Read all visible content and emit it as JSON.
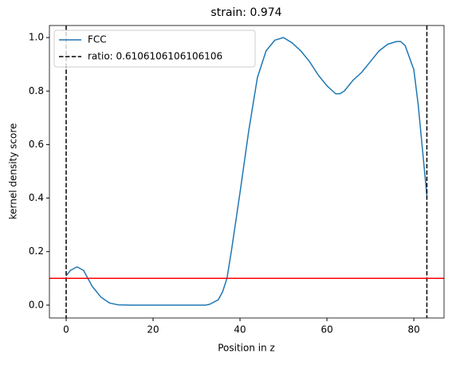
{
  "chart_data": {
    "type": "line",
    "title": "strain: 0.974",
    "x_label": "Position in z",
    "y_label": "kernel density score",
    "x": [
      0,
      1,
      2.5,
      4,
      5,
      6,
      8,
      10,
      12,
      15,
      20,
      25,
      30,
      32,
      33,
      35,
      36,
      37,
      38,
      40,
      42,
      44,
      46,
      48,
      50,
      52,
      54,
      56,
      58,
      60,
      62,
      63,
      64,
      66,
      68,
      70,
      72,
      74,
      76,
      77,
      78,
      80,
      81,
      82,
      83
    ],
    "series": [
      {
        "name": "FCC",
        "color": "#1f77b4",
        "values": [
          0.11,
          0.13,
          0.143,
          0.13,
          0.1,
          0.07,
          0.03,
          0.008,
          0.001,
          0,
          0,
          0,
          0,
          0,
          0.003,
          0.02,
          0.05,
          0.1,
          0.2,
          0.42,
          0.65,
          0.85,
          0.95,
          0.99,
          1.0,
          0.98,
          0.95,
          0.91,
          0.86,
          0.82,
          0.79,
          0.79,
          0.8,
          0.84,
          0.87,
          0.91,
          0.95,
          0.975,
          0.985,
          0.985,
          0.97,
          0.88,
          0.75,
          0.58,
          0.41
        ]
      }
    ],
    "vlines": {
      "name": "ratio: 0.6106106106106106",
      "color": "#000000",
      "values": [
        0,
        83
      ]
    },
    "hline": 0.1,
    "hline_color": "#ff0000",
    "xlim": [
      -3.85,
      86.95
    ],
    "ylim": [
      -0.048,
      1.045
    ],
    "xticks": [
      0,
      20,
      40,
      60,
      80
    ],
    "yticks": [
      {
        "value": 0,
        "label": "0.0"
      },
      0.2,
      0.4,
      0.6,
      0.8,
      {
        "value": 1,
        "label": "1.0"
      }
    ],
    "legend": "upper left"
  }
}
